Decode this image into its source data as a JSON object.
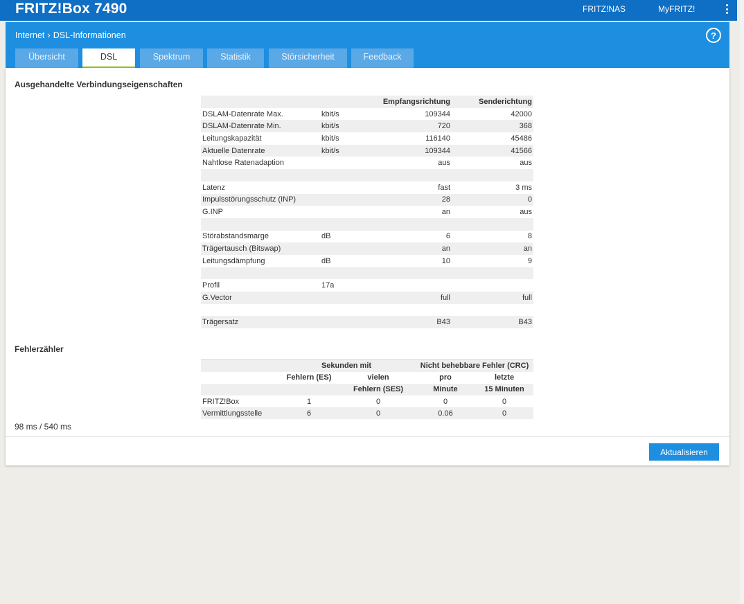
{
  "header": {
    "brand": "FRITZ!Box 7490",
    "links": [
      "FRITZ!NAS",
      "MyFRITZ!"
    ]
  },
  "breadcrumb": {
    "parent": "Internet",
    "current": "DSL-Informationen"
  },
  "tabs": [
    "Übersicht",
    "DSL",
    "Spektrum",
    "Statistik",
    "Störsicherheit",
    "Feedback"
  ],
  "active_tab": "DSL",
  "section1": {
    "title": "Ausgehandelte Verbindungseigenschaften",
    "columns": [
      "Empfangsrichtung",
      "Senderichtung"
    ],
    "rows": [
      {
        "label": "DSLAM-Datenrate Max.",
        "unit": "kbit/s",
        "rx": "109344",
        "tx": "42000"
      },
      {
        "label": "DSLAM-Datenrate Min.",
        "unit": "kbit/s",
        "rx": "720",
        "tx": "368"
      },
      {
        "label": "Leitungskapazität",
        "unit": "kbit/s",
        "rx": "116140",
        "tx": "45486"
      },
      {
        "label": "Aktuelle Datenrate",
        "unit": "kbit/s",
        "rx": "109344",
        "tx": "41566"
      },
      {
        "label": "Nahtlose Ratenadaption",
        "unit": "",
        "rx": "aus",
        "tx": "aus"
      },
      {
        "label": "",
        "unit": "",
        "rx": "",
        "tx": ""
      },
      {
        "label": "Latenz",
        "unit": "",
        "rx": "fast",
        "tx": "3 ms"
      },
      {
        "label": "Impulsstörungsschutz (INP)",
        "unit": "",
        "rx": "28",
        "tx": "0"
      },
      {
        "label": "G.INP",
        "unit": "",
        "rx": "an",
        "tx": "aus"
      },
      {
        "label": "",
        "unit": "",
        "rx": "",
        "tx": ""
      },
      {
        "label": "Störabstandsmarge",
        "unit": "dB",
        "rx": "6",
        "tx": "8"
      },
      {
        "label": "Trägertausch (Bitswap)",
        "unit": "",
        "rx": "an",
        "tx": "an"
      },
      {
        "label": "Leitungsdämpfung",
        "unit": "dB",
        "rx": "10",
        "tx": "9"
      },
      {
        "label": "",
        "unit": "",
        "rx": "",
        "tx": ""
      },
      {
        "label": "Profil",
        "unit": "17a",
        "rx": "",
        "tx": ""
      },
      {
        "label": "G.Vector",
        "unit": "",
        "rx": "full",
        "tx": "full"
      },
      {
        "label": "",
        "unit": "",
        "rx": "",
        "tx": ""
      },
      {
        "label": "Trägersatz",
        "unit": "",
        "rx": "B43",
        "tx": "B43"
      }
    ]
  },
  "section2": {
    "title": "Fehlerzähler",
    "group1": "Sekunden mit",
    "group2": "Nicht behebbare Fehler (CRC)",
    "sub_headers": [
      [
        "Fehlern (ES)",
        "vielen",
        "pro",
        "letzte"
      ],
      [
        "",
        "Fehlern (SES)",
        "Minute",
        "15 Minuten"
      ]
    ],
    "rows": [
      {
        "label": "FRITZ!Box",
        "es": "1",
        "ses": "0",
        "crc_min": "0",
        "crc_15": "0"
      },
      {
        "label": "Vermittlungsstelle",
        "es": "6",
        "ses": "0",
        "crc_min": "0.06",
        "crc_15": "0"
      }
    ]
  },
  "timing": "98 ms / 540 ms",
  "refresh_label": "Aktualisieren"
}
